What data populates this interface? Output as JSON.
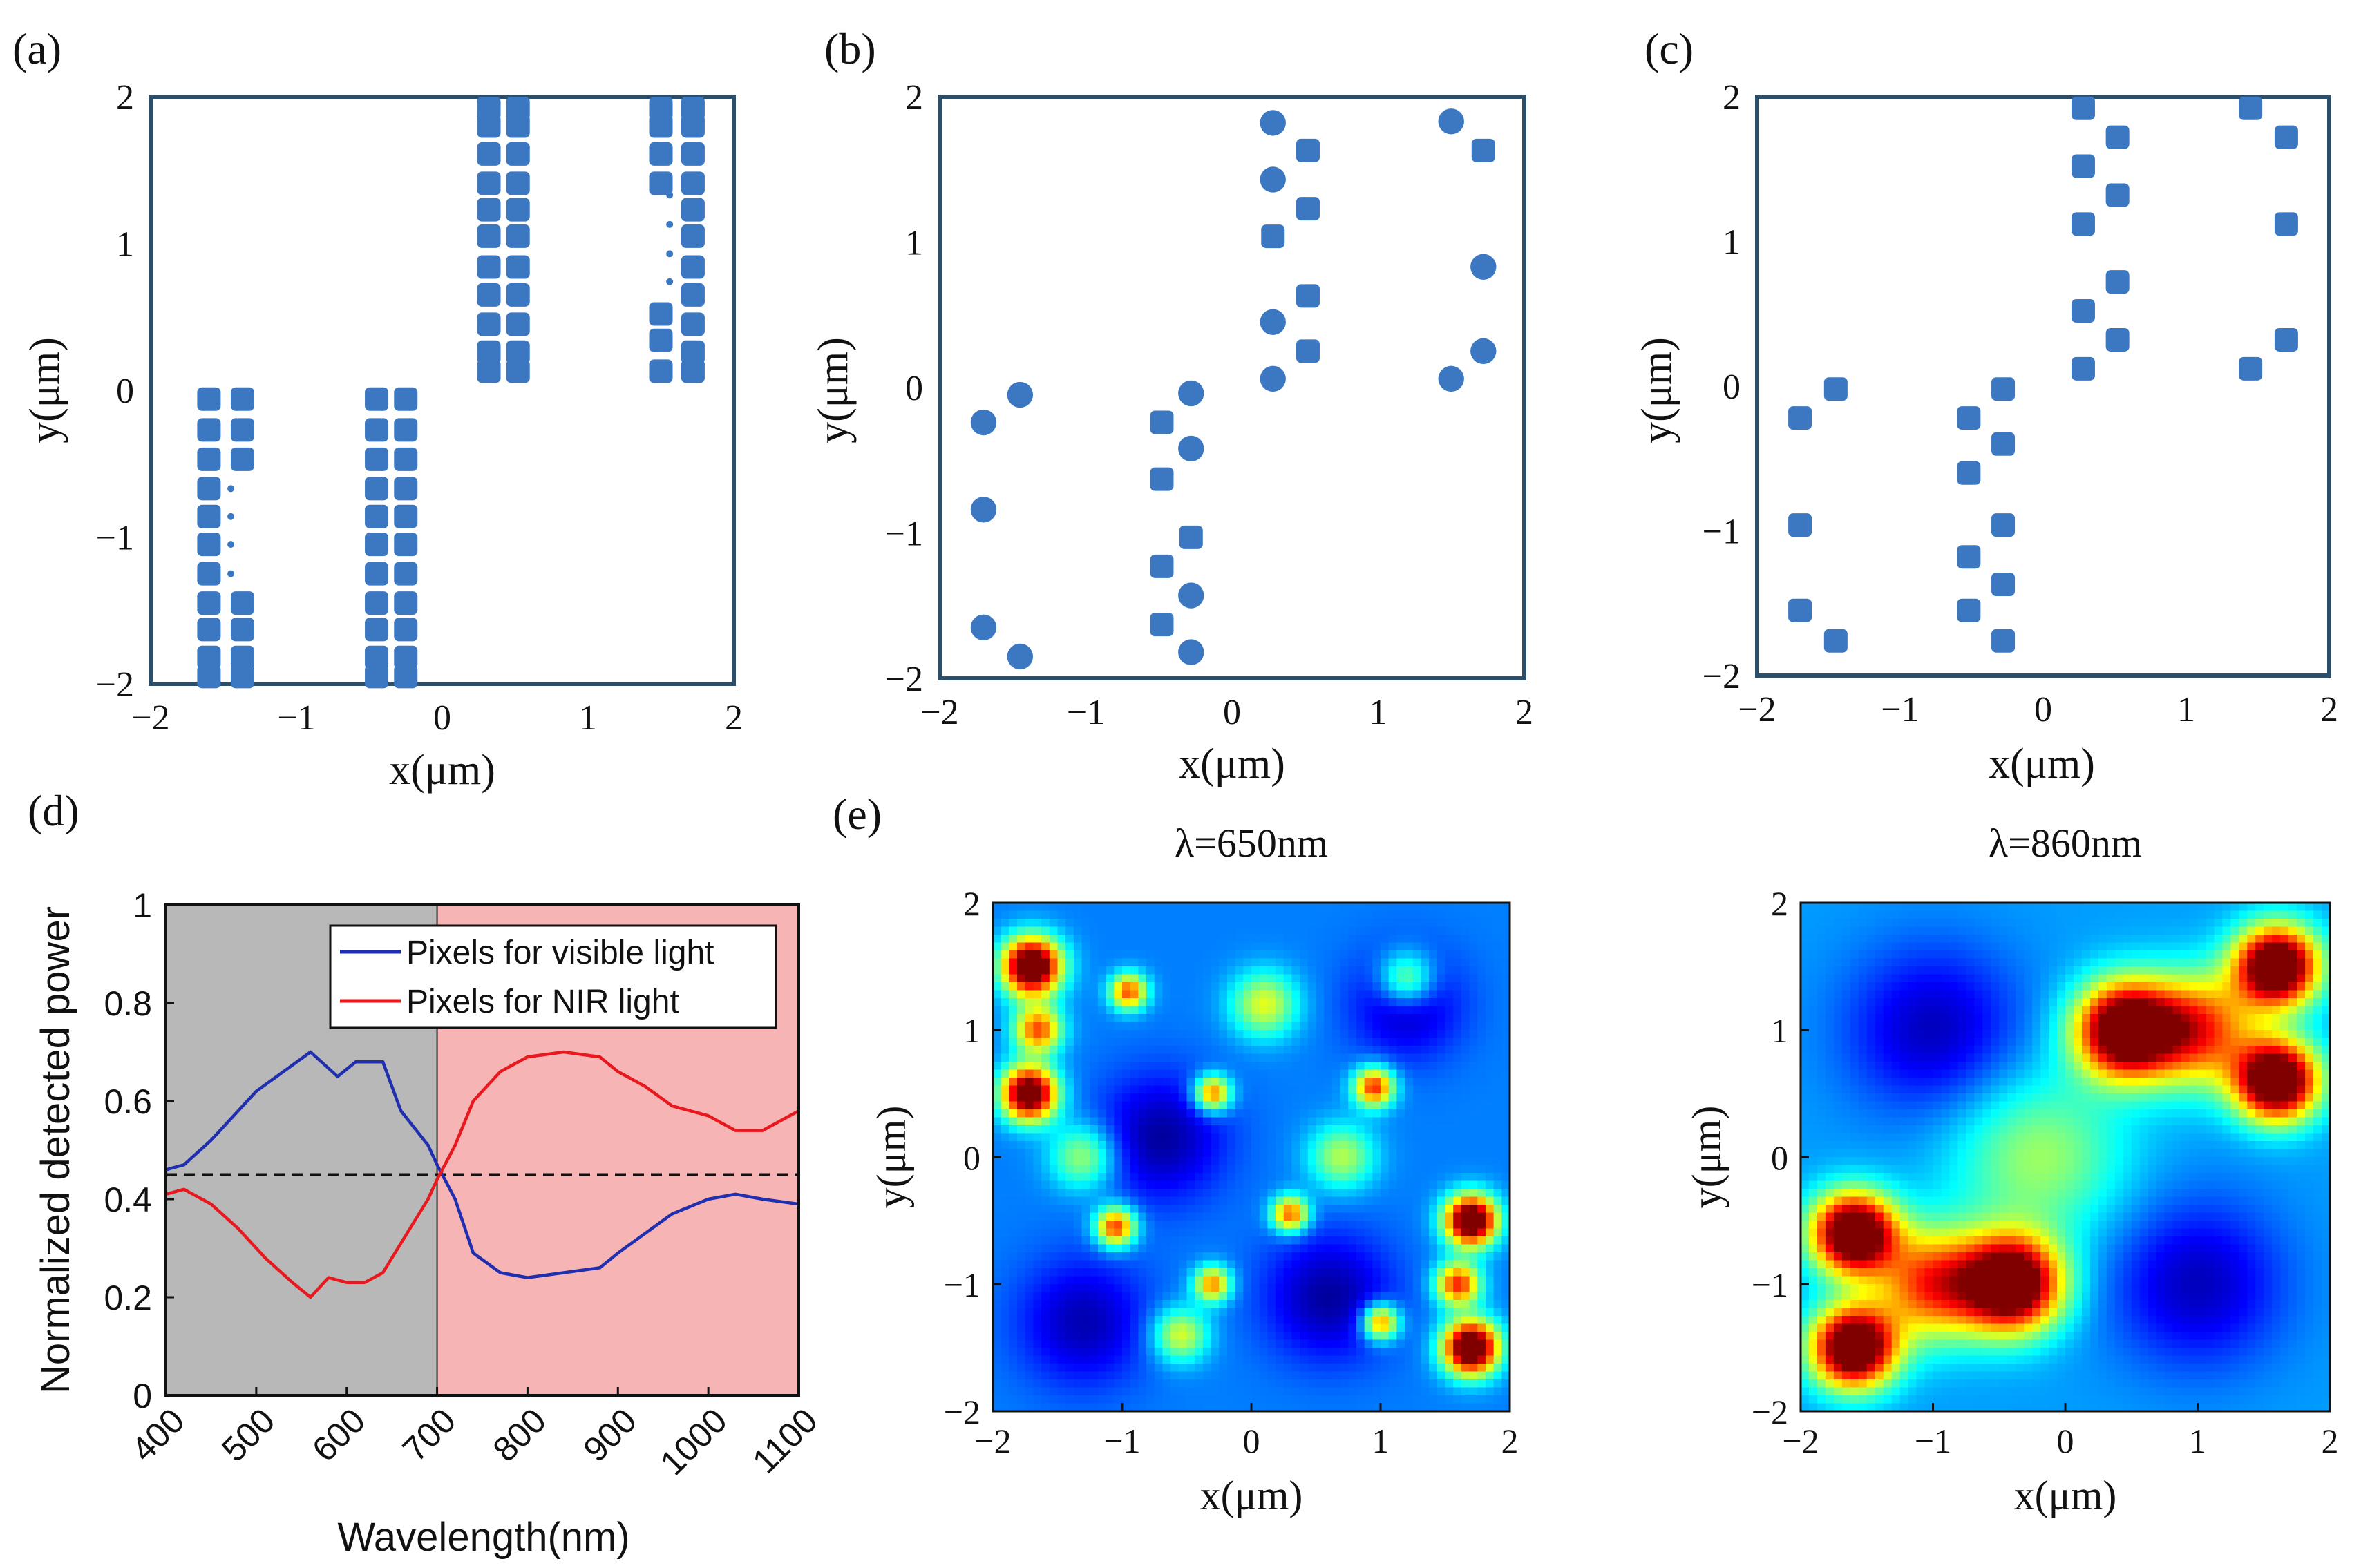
{
  "colors": {
    "marker": "#3C78C2",
    "frame": "#2B4E6A",
    "visible_line": "#1F2FB0",
    "nir_line": "#E8191E",
    "visible_band": "#B8B8B8",
    "nir_band": "#F7B4B4"
  },
  "chart_data": [
    {
      "id": "a",
      "type": "scatter",
      "panel_label": "(a)",
      "xlabel": "x(μm)",
      "ylabel": "y(μm)",
      "xlim": [
        -2,
        2
      ],
      "ylim": [
        -2,
        2
      ],
      "xticks": [
        "−2",
        "−1",
        "0",
        "1",
        "2"
      ],
      "yticks": [
        "2",
        "1",
        "0",
        "−1",
        "−2"
      ],
      "columns": [
        {
          "x": -1.6,
          "ys": [
            -0.06,
            -0.27,
            -0.47,
            -0.67,
            -0.86,
            -1.05,
            -1.25,
            -1.45,
            -1.63,
            -1.82,
            -1.95
          ]
        },
        {
          "x": -1.37,
          "ys": [
            -0.06,
            -0.27,
            -0.47,
            -1.45,
            -1.63,
            -1.82,
            -1.95
          ]
        },
        {
          "x": -0.45,
          "ys": [
            -0.06,
            -0.27,
            -0.47,
            -0.67,
            -0.86,
            -1.05,
            -1.25,
            -1.45,
            -1.63,
            -1.82,
            -1.95
          ]
        },
        {
          "x": -0.25,
          "ys": [
            -0.06,
            -0.27,
            -0.47,
            -0.67,
            -0.86,
            -1.05,
            -1.25,
            -1.45,
            -1.63,
            -1.82,
            -1.95
          ]
        },
        {
          "x": 0.32,
          "ys": [
            1.92,
            1.8,
            1.61,
            1.41,
            1.23,
            1.05,
            0.84,
            0.65,
            0.45,
            0.26,
            0.13
          ]
        },
        {
          "x": 0.52,
          "ys": [
            1.92,
            1.8,
            1.61,
            1.41,
            1.23,
            1.05,
            0.84,
            0.65,
            0.45,
            0.26,
            0.13
          ]
        },
        {
          "x": 1.5,
          "ys": [
            1.92,
            1.8,
            1.61,
            1.41,
            0.52,
            0.34,
            0.13
          ]
        },
        {
          "x": 1.72,
          "ys": [
            1.92,
            1.8,
            1.61,
            1.41,
            1.23,
            1.05,
            0.84,
            0.65,
            0.45,
            0.26,
            0.13
          ]
        }
      ],
      "dots": [
        {
          "x": -1.45,
          "y": -0.67
        },
        {
          "x": -1.45,
          "y": -0.86
        },
        {
          "x": -1.45,
          "y": -1.05
        },
        {
          "x": -1.45,
          "y": -1.25
        },
        {
          "x": 1.56,
          "y": 1.33
        },
        {
          "x": 1.56,
          "y": 1.13
        },
        {
          "x": 1.56,
          "y": 0.93
        },
        {
          "x": 1.56,
          "y": 0.74
        }
      ]
    },
    {
      "id": "b",
      "type": "scatter",
      "panel_label": "(b)",
      "xlabel": "x(μm)",
      "ylabel": "y(μm)",
      "xlim": [
        -2,
        2
      ],
      "ylim": [
        -2,
        2
      ],
      "xticks": [
        "−2",
        "−1",
        "0",
        "1",
        "2"
      ],
      "yticks": [
        "2",
        "1",
        "0",
        "−1",
        "−2"
      ],
      "points": [
        {
          "x": -1.45,
          "y": -0.05,
          "m": "circle"
        },
        {
          "x": -1.7,
          "y": -0.24,
          "m": "circle"
        },
        {
          "x": -1.7,
          "y": -0.84,
          "m": "circle"
        },
        {
          "x": -1.7,
          "y": -1.65,
          "m": "circle"
        },
        {
          "x": -1.45,
          "y": -1.85,
          "m": "circle"
        },
        {
          "x": -0.28,
          "y": -0.04,
          "m": "circle"
        },
        {
          "x": -0.48,
          "y": -0.24,
          "m": "square"
        },
        {
          "x": -0.28,
          "y": -0.42,
          "m": "circle"
        },
        {
          "x": -0.48,
          "y": -0.63,
          "m": "square"
        },
        {
          "x": -0.28,
          "y": -1.03,
          "m": "square"
        },
        {
          "x": -0.48,
          "y": -1.23,
          "m": "square"
        },
        {
          "x": -0.28,
          "y": -1.43,
          "m": "circle"
        },
        {
          "x": -0.48,
          "y": -1.63,
          "m": "square"
        },
        {
          "x": -0.28,
          "y": -1.82,
          "m": "circle"
        },
        {
          "x": 0.28,
          "y": 1.82,
          "m": "circle"
        },
        {
          "x": 0.52,
          "y": 1.63,
          "m": "square"
        },
        {
          "x": 0.28,
          "y": 1.43,
          "m": "circle"
        },
        {
          "x": 0.52,
          "y": 1.23,
          "m": "square"
        },
        {
          "x": 0.28,
          "y": 1.04,
          "m": "square"
        },
        {
          "x": 0.52,
          "y": 0.63,
          "m": "square"
        },
        {
          "x": 0.28,
          "y": 0.45,
          "m": "circle"
        },
        {
          "x": 0.52,
          "y": 0.25,
          "m": "square"
        },
        {
          "x": 0.28,
          "y": 0.06,
          "m": "circle"
        },
        {
          "x": 1.5,
          "y": 1.83,
          "m": "circle"
        },
        {
          "x": 1.72,
          "y": 1.63,
          "m": "square"
        },
        {
          "x": 1.72,
          "y": 0.83,
          "m": "circle"
        },
        {
          "x": 1.72,
          "y": 0.25,
          "m": "circle"
        },
        {
          "x": 1.5,
          "y": 0.06,
          "m": "circle"
        }
      ]
    },
    {
      "id": "c",
      "type": "scatter",
      "panel_label": "(c)",
      "xlabel": "x(μm)",
      "ylabel": "y(μm)",
      "xlim": [
        -2,
        2
      ],
      "ylim": [
        -2,
        2
      ],
      "xticks": [
        "−2",
        "−1",
        "0",
        "1",
        "2"
      ],
      "yticks": [
        "2",
        "1",
        "0",
        "−1",
        "−2"
      ],
      "points": [
        {
          "x": -1.45,
          "y": -0.02,
          "m": "square"
        },
        {
          "x": -1.7,
          "y": -0.22,
          "m": "square"
        },
        {
          "x": -1.7,
          "y": -0.96,
          "m": "square"
        },
        {
          "x": -1.7,
          "y": -1.55,
          "m": "square"
        },
        {
          "x": -1.45,
          "y": -1.76,
          "m": "square"
        },
        {
          "x": -0.28,
          "y": -0.02,
          "m": "square"
        },
        {
          "x": -0.52,
          "y": -0.22,
          "m": "square"
        },
        {
          "x": -0.28,
          "y": -0.4,
          "m": "square"
        },
        {
          "x": -0.52,
          "y": -0.6,
          "m": "square"
        },
        {
          "x": -0.28,
          "y": -0.96,
          "m": "square"
        },
        {
          "x": -0.52,
          "y": -1.18,
          "m": "square"
        },
        {
          "x": -0.28,
          "y": -1.37,
          "m": "square"
        },
        {
          "x": -0.52,
          "y": -1.55,
          "m": "square"
        },
        {
          "x": -0.28,
          "y": -1.76,
          "m": "square"
        },
        {
          "x": 0.28,
          "y": 1.92,
          "m": "square"
        },
        {
          "x": 0.52,
          "y": 1.72,
          "m": "square"
        },
        {
          "x": 0.28,
          "y": 1.52,
          "m": "square"
        },
        {
          "x": 0.52,
          "y": 1.32,
          "m": "square"
        },
        {
          "x": 0.28,
          "y": 1.12,
          "m": "square"
        },
        {
          "x": 0.52,
          "y": 0.72,
          "m": "square"
        },
        {
          "x": 0.28,
          "y": 0.52,
          "m": "square"
        },
        {
          "x": 0.52,
          "y": 0.32,
          "m": "square"
        },
        {
          "x": 0.28,
          "y": 0.12,
          "m": "square"
        },
        {
          "x": 1.45,
          "y": 1.92,
          "m": "square"
        },
        {
          "x": 1.7,
          "y": 1.72,
          "m": "square"
        },
        {
          "x": 1.7,
          "y": 1.12,
          "m": "square"
        },
        {
          "x": 1.7,
          "y": 0.32,
          "m": "square"
        },
        {
          "x": 1.45,
          "y": 0.12,
          "m": "square"
        }
      ]
    },
    {
      "id": "d",
      "type": "line",
      "panel_label": "(d)",
      "xlabel": "Wavelength(nm)",
      "ylabel": "Normalized detected power",
      "xlim": [
        400,
        1100
      ],
      "ylim": [
        0,
        1
      ],
      "xticks": [
        400,
        500,
        600,
        700,
        800,
        900,
        1000,
        1100
      ],
      "yticks": [
        "1",
        "0.8",
        "0.6",
        "0.4",
        "0.2",
        "0"
      ],
      "regions": [
        {
          "from": 400,
          "to": 700,
          "name": "visible"
        },
        {
          "from": 700,
          "to": 1100,
          "name": "nir"
        }
      ],
      "hline": 0.45,
      "legend": {
        "position": "top-right"
      },
      "series": [
        {
          "name": "Pixels for visible light",
          "color": "#1F2FB0",
          "x": [
            400,
            420,
            450,
            480,
            500,
            530,
            560,
            590,
            610,
            640,
            660,
            690,
            700,
            720,
            740,
            770,
            800,
            840,
            880,
            900,
            930,
            960,
            1000,
            1030,
            1060,
            1100
          ],
          "y": [
            0.46,
            0.47,
            0.52,
            0.58,
            0.62,
            0.66,
            0.7,
            0.65,
            0.68,
            0.68,
            0.58,
            0.51,
            0.47,
            0.4,
            0.29,
            0.25,
            0.24,
            0.25,
            0.26,
            0.29,
            0.33,
            0.37,
            0.4,
            0.41,
            0.4,
            0.39
          ]
        },
        {
          "name": "Pixels for NIR light",
          "color": "#E8191E",
          "x": [
            400,
            420,
            450,
            480,
            510,
            540,
            560,
            580,
            600,
            620,
            640,
            660,
            690,
            700,
            720,
            740,
            770,
            800,
            840,
            880,
            900,
            930,
            960,
            1000,
            1030,
            1060,
            1100
          ],
          "y": [
            0.41,
            0.42,
            0.39,
            0.34,
            0.28,
            0.23,
            0.2,
            0.24,
            0.23,
            0.23,
            0.25,
            0.31,
            0.4,
            0.44,
            0.51,
            0.6,
            0.66,
            0.69,
            0.7,
            0.69,
            0.66,
            0.63,
            0.59,
            0.57,
            0.54,
            0.54,
            0.58
          ]
        }
      ]
    },
    {
      "id": "e1",
      "type": "heatmap",
      "panel_label": "(e)",
      "title": "λ=650nm",
      "xlabel": "x(μm)",
      "ylabel": "y(μm)",
      "xlim": [
        -2,
        2
      ],
      "ylim": [
        -2,
        2
      ],
      "xticks": [
        "−2",
        "−1",
        "0",
        "1",
        "2"
      ],
      "yticks": [
        "2",
        "1",
        "0",
        "−1",
        "−2"
      ],
      "base": 0.25,
      "hotspots": [
        {
          "x": -1.7,
          "y": 1.5,
          "a": 0.95,
          "s": 0.16
        },
        {
          "x": -1.72,
          "y": 0.5,
          "a": 0.9,
          "s": 0.15
        },
        {
          "x": -1.65,
          "y": 1.0,
          "a": 0.55,
          "s": 0.13
        },
        {
          "x": -0.95,
          "y": 1.3,
          "a": 0.55,
          "s": 0.1
        },
        {
          "x": -0.3,
          "y": 0.5,
          "a": 0.55,
          "s": 0.1
        },
        {
          "x": 0.95,
          "y": 0.55,
          "a": 0.6,
          "s": 0.11
        },
        {
          "x": 0.3,
          "y": -0.45,
          "a": 0.55,
          "s": 0.1
        },
        {
          "x": -1.05,
          "y": -0.55,
          "a": 0.6,
          "s": 0.11
        },
        {
          "x": 1.7,
          "y": -0.5,
          "a": 0.95,
          "s": 0.14
        },
        {
          "x": 1.7,
          "y": -1.5,
          "a": 0.95,
          "s": 0.15
        },
        {
          "x": 1.6,
          "y": -1.0,
          "a": 0.6,
          "s": 0.12
        },
        {
          "x": 1.0,
          "y": -1.3,
          "a": 0.55,
          "s": 0.1
        },
        {
          "x": -0.3,
          "y": -1.0,
          "a": 0.5,
          "s": 0.1
        },
        {
          "x": 0.1,
          "y": 1.2,
          "a": 0.35,
          "s": 0.18
        },
        {
          "x": -0.55,
          "y": -1.4,
          "a": 0.35,
          "s": 0.15
        },
        {
          "x": 1.2,
          "y": 1.4,
          "a": 0.35,
          "s": 0.15
        },
        {
          "x": -1.3,
          "y": 0.0,
          "a": 0.3,
          "s": 0.18
        },
        {
          "x": 0.7,
          "y": 0.0,
          "a": 0.3,
          "s": 0.18
        }
      ],
      "holes": [
        {
          "x": -0.7,
          "y": 0.15,
          "a": 0.22,
          "s": 0.35
        },
        {
          "x": 0.6,
          "y": -1.1,
          "a": 0.22,
          "s": 0.35
        },
        {
          "x": -1.3,
          "y": -1.3,
          "a": 0.2,
          "s": 0.35
        },
        {
          "x": 1.2,
          "y": 1.2,
          "a": 0.2,
          "s": 0.3
        }
      ]
    },
    {
      "id": "e2",
      "type": "heatmap",
      "title": "λ=860nm",
      "xlabel": "x(μm)",
      "ylabel": "y(μm)",
      "xlim": [
        -2,
        2
      ],
      "ylim": [
        -2,
        2
      ],
      "xticks": [
        "−2",
        "−1",
        "0",
        "1",
        "2"
      ],
      "yticks": [
        "2",
        "1",
        "0",
        "−1",
        "−2"
      ],
      "base": 0.28,
      "hotspots": [
        {
          "x": 1.6,
          "y": 1.5,
          "a": 0.95,
          "s": 0.22
        },
        {
          "x": 1.6,
          "y": 0.6,
          "a": 0.95,
          "s": 0.22
        },
        {
          "x": 0.45,
          "y": 1.0,
          "a": 0.92,
          "s": 0.26
        },
        {
          "x": 1.0,
          "y": 1.0,
          "a": 0.55,
          "s": 0.3
        },
        {
          "x": -1.6,
          "y": -0.6,
          "a": 0.95,
          "s": 0.22
        },
        {
          "x": -1.6,
          "y": -1.5,
          "a": 0.95,
          "s": 0.22
        },
        {
          "x": -0.4,
          "y": -1.0,
          "a": 0.92,
          "s": 0.26
        },
        {
          "x": -1.0,
          "y": -1.0,
          "a": 0.55,
          "s": 0.3
        },
        {
          "x": -0.2,
          "y": 0.0,
          "a": 0.25,
          "s": 0.45
        }
      ],
      "holes": [
        {
          "x": -1.0,
          "y": 1.0,
          "a": 0.22,
          "s": 0.45
        },
        {
          "x": 1.0,
          "y": -1.0,
          "a": 0.22,
          "s": 0.45
        }
      ]
    }
  ]
}
